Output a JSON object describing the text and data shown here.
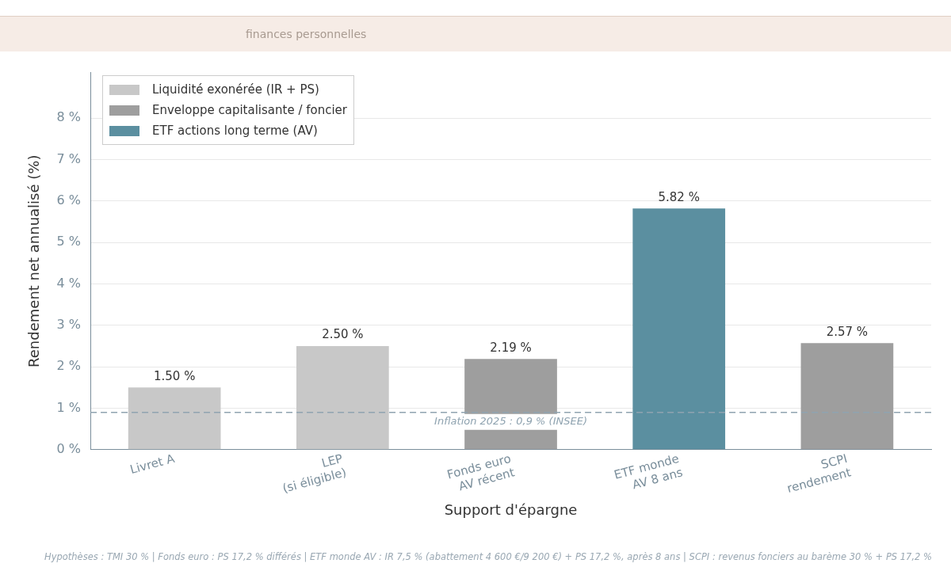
{
  "chart_data": {
    "type": "bar",
    "subtitle": "finances personnelles",
    "xlabel": "Support d'épargne",
    "ylabel": "Rendement net annualisé (%)",
    "categories": [
      "Livret A",
      "LEP\n(si éligible)",
      "Fonds euro\nAV récent",
      "ETF monde\nAV 8 ans",
      "SCPI\nrendement"
    ],
    "series": [
      {
        "name": "Liquidité exonérée (IR + PS)",
        "color": "#c8c8c8",
        "values": [
          1.5,
          2.5,
          null,
          null,
          null
        ],
        "value_labels": [
          "1.50 %",
          "2.50 %",
          null,
          null,
          null
        ]
      },
      {
        "name": "Enveloppe capitalisante / foncier",
        "color": "#9e9e9e",
        "values": [
          null,
          null,
          2.19,
          null,
          2.57
        ],
        "value_labels": [
          null,
          null,
          "2.19 %",
          null,
          "2.57 %"
        ]
      },
      {
        "name": "ETF actions long terme (AV)",
        "color": "#5b8fa0",
        "values": [
          null,
          null,
          null,
          5.82,
          null
        ],
        "value_labels": [
          null,
          null,
          null,
          "5.82 %",
          null
        ]
      }
    ],
    "ylim": [
      0,
      9.1
    ],
    "yticks": [
      {
        "value": 0,
        "label": "0 %"
      },
      {
        "value": 1,
        "label": "1 %"
      },
      {
        "value": 2,
        "label": "2 %"
      },
      {
        "value": 3,
        "label": "3 %"
      },
      {
        "value": 4,
        "label": "4 %"
      },
      {
        "value": 5,
        "label": "5 %"
      },
      {
        "value": 6,
        "label": "6 %"
      },
      {
        "value": 7,
        "label": "7 %"
      },
      {
        "value": 8,
        "label": "8 %"
      }
    ],
    "grid": "y",
    "legend": "top left",
    "ref_lines": [
      {
        "axis": "y",
        "value": 0.9,
        "label": "Inflation 2025 : 0,9 % (INSEE)",
        "color": "#8fa3b0",
        "line_style": "dashed"
      }
    ],
    "annotations": [
      "Hypothèses : TMI 30 % | Fonds euro : PS 17,2 % différés | ETF monde AV : IR 7,5 % (abattement 4 600 €/9 200 €) + PS 17,2 %, après 8 ans | SCPI : revenus fonciers au barème 30 % + PS 17,2 %"
    ]
  }
}
